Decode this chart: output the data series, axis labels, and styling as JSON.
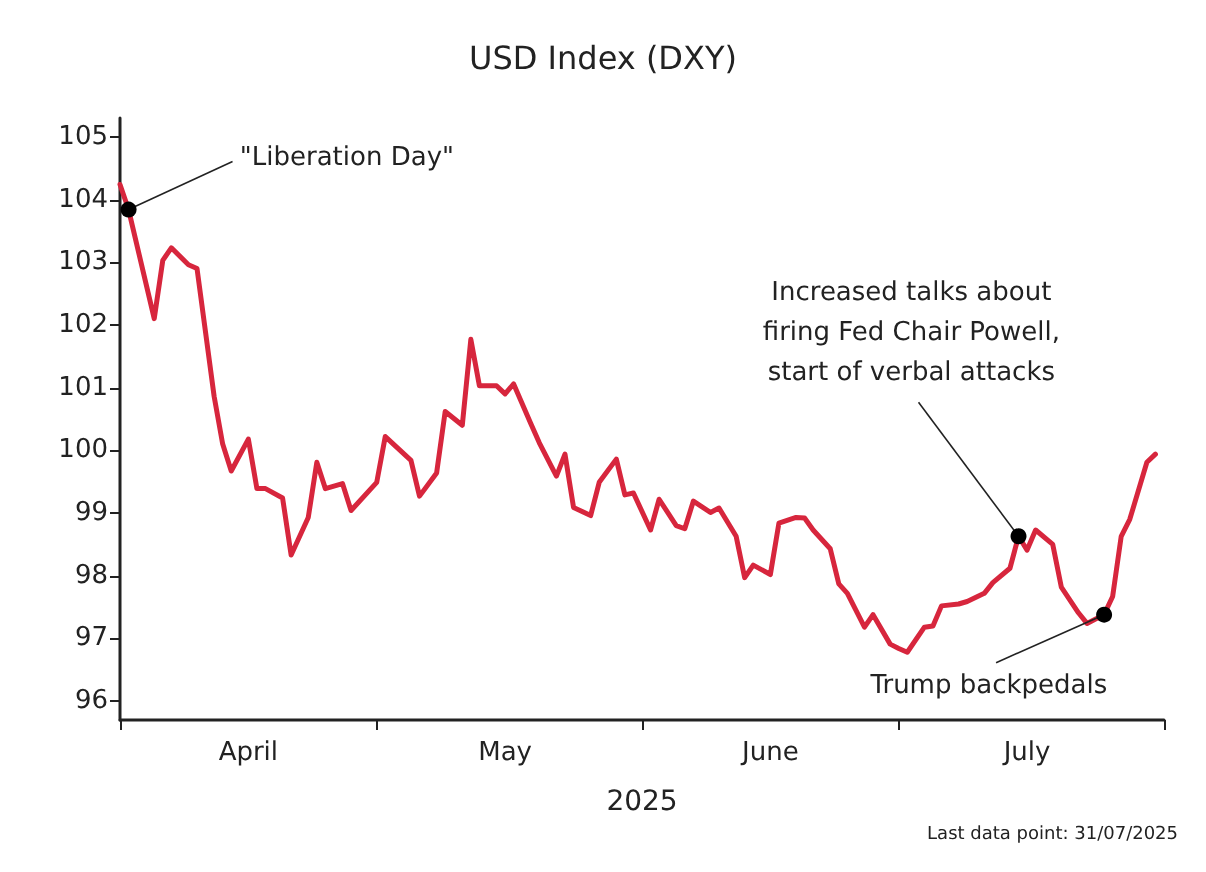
{
  "chart_data": {
    "type": "line",
    "title": "USD Index (DXY)",
    "xlabel": "2025",
    "x": [
      "2025-04-01",
      "2025-04-02",
      "2025-04-05",
      "2025-04-06",
      "2025-04-07",
      "2025-04-09",
      "2025-04-10",
      "2025-04-12",
      "2025-04-13",
      "2025-04-14",
      "2025-04-16",
      "2025-04-17",
      "2025-04-18",
      "2025-04-20",
      "2025-04-21",
      "2025-04-23",
      "2025-04-24",
      "2025-04-25",
      "2025-04-27",
      "2025-04-28",
      "2025-05-01",
      "2025-05-02",
      "2025-05-05",
      "2025-05-06",
      "2025-05-08",
      "2025-05-09",
      "2025-05-11",
      "2025-05-12",
      "2025-05-13",
      "2025-05-15",
      "2025-05-16",
      "2025-05-17",
      "2025-05-19",
      "2025-05-20",
      "2025-05-22",
      "2025-05-23",
      "2025-05-24",
      "2025-05-26",
      "2025-05-27",
      "2025-05-29",
      "2025-05-30",
      "2025-05-31",
      "2025-06-02",
      "2025-06-03",
      "2025-06-05",
      "2025-06-06",
      "2025-06-07",
      "2025-06-09",
      "2025-06-10",
      "2025-06-12",
      "2025-06-13",
      "2025-06-14",
      "2025-06-16",
      "2025-06-17",
      "2025-06-19",
      "2025-06-20",
      "2025-06-21",
      "2025-06-23",
      "2025-06-24",
      "2025-06-25",
      "2025-06-27",
      "2025-06-28",
      "2025-06-30",
      "2025-07-01",
      "2025-07-02",
      "2025-07-04",
      "2025-07-05",
      "2025-07-06",
      "2025-07-08",
      "2025-07-09",
      "2025-07-11",
      "2025-07-12",
      "2025-07-14",
      "2025-07-15",
      "2025-07-16",
      "2025-07-17",
      "2025-07-19",
      "2025-07-20",
      "2025-07-22",
      "2025-07-23",
      "2025-07-25",
      "2025-07-26",
      "2025-07-27",
      "2025-07-28",
      "2025-07-30",
      "2025-07-31"
    ],
    "series": [
      {
        "color": "#d7263d",
        "values": [
          104.24,
          103.84,
          102.1,
          103.03,
          103.23,
          102.96,
          102.9,
          100.86,
          100.1,
          99.67,
          100.18,
          99.39,
          99.39,
          99.24,
          98.33,
          98.93,
          99.81,
          99.39,
          99.47,
          99.04,
          99.49,
          100.22,
          99.84,
          99.27,
          99.64,
          100.62,
          100.4,
          101.77,
          101.03,
          101.03,
          100.9,
          101.06,
          100.43,
          100.12,
          99.59,
          99.94,
          99.09,
          98.96,
          99.49,
          99.86,
          99.29,
          99.32,
          98.73,
          99.22,
          98.8,
          98.75,
          99.19,
          99.01,
          99.08,
          98.63,
          97.97,
          98.17,
          98.02,
          98.84,
          98.93,
          98.92,
          98.73,
          98.43,
          97.87,
          97.72,
          97.18,
          97.38,
          96.91,
          96.84,
          96.78,
          97.18,
          97.2,
          97.52,
          97.55,
          97.59,
          97.72,
          97.89,
          98.12,
          98.63,
          98.41,
          98.73,
          98.5,
          97.82,
          97.41,
          97.24,
          97.38,
          97.67,
          98.63,
          98.9,
          99.81,
          99.94
        ]
      }
    ],
    "ylim": [
      95.7,
      105.3
    ],
    "yticks": [
      96,
      97,
      98,
      99,
      100,
      101,
      102,
      103,
      104,
      105
    ],
    "xlim": [
      "2025-04-01",
      "2025-08-01"
    ],
    "xticks": [
      {
        "value": "2025-04-01",
        "label": null
      },
      {
        "value": "2025-04-16",
        "label": "April"
      },
      {
        "value": "2025-05-01",
        "label": null
      },
      {
        "value": "2025-05-16",
        "label": "May"
      },
      {
        "value": "2025-06-01",
        "label": null
      },
      {
        "value": "2025-06-16",
        "label": "June"
      },
      {
        "value": "2025-07-01",
        "label": null
      },
      {
        "value": "2025-07-16",
        "label": "July"
      },
      {
        "value": "2025-08-01",
        "label": null
      }
    ],
    "grid": false,
    "marker": "none",
    "line_style": "solid",
    "annotations": [
      {
        "text": "\"Liberation Day\"",
        "x": "2025-04-02",
        "y": 103.84
      },
      {
        "text": "Increased talks about\nfiring Fed Chair Powell,\nstart of verbal attacks",
        "x": "2025-07-15",
        "y": 98.63
      },
      {
        "text": "Trump backpedals",
        "x": "2025-07-25",
        "y": 97.38
      },
      "Last data point: 31/07/2025"
    ]
  }
}
